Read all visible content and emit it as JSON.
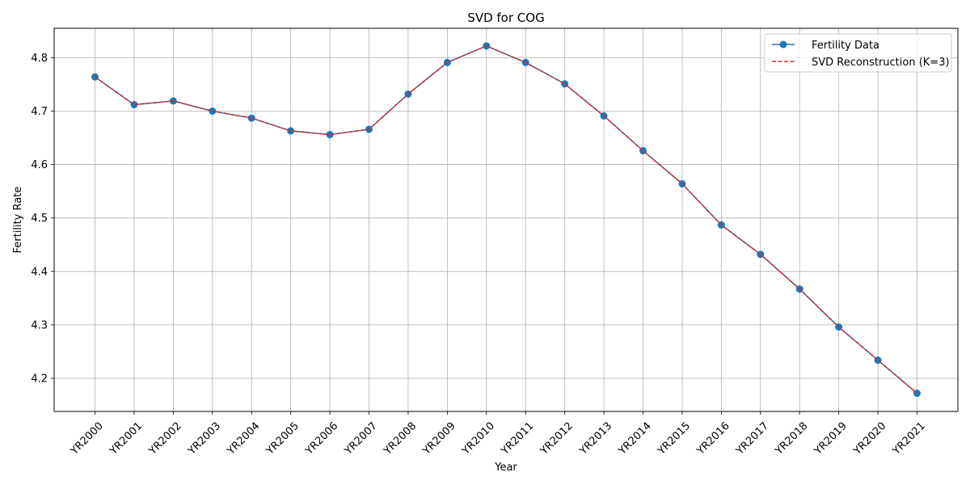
{
  "chart_data": {
    "type": "line",
    "title": "SVD for COG",
    "xlabel": "Year",
    "ylabel": "Fertility Rate",
    "categories": [
      "YR2000",
      "YR2001",
      "YR2002",
      "YR2003",
      "YR2004",
      "YR2005",
      "YR2006",
      "YR2007",
      "YR2008",
      "YR2009",
      "YR2010",
      "YR2011",
      "YR2012",
      "YR2013",
      "YR2014",
      "YR2015",
      "YR2016",
      "YR2017",
      "YR2018",
      "YR2019",
      "YR2020",
      "YR2021"
    ],
    "ylim": [
      4.138,
      4.855
    ],
    "yticks": [
      4.2,
      4.3,
      4.4,
      4.5,
      4.6,
      4.7,
      4.8
    ],
    "grid": true,
    "legend_position": "top-right",
    "series": [
      {
        "name": "Fertility Data",
        "style": "solid-with-markers",
        "color": "#1f77b4",
        "values": [
          4.764,
          4.712,
          4.719,
          4.7,
          4.687,
          4.663,
          4.656,
          4.666,
          4.732,
          4.791,
          4.822,
          4.791,
          4.751,
          4.691,
          4.626,
          4.564,
          4.487,
          4.432,
          4.367,
          4.296,
          4.234,
          4.172
        ]
      },
      {
        "name": "SVD Reconstruction (K=3)",
        "style": "dashed",
        "color": "#d62728",
        "values": [
          4.764,
          4.712,
          4.719,
          4.7,
          4.687,
          4.663,
          4.656,
          4.666,
          4.732,
          4.791,
          4.822,
          4.791,
          4.751,
          4.691,
          4.626,
          4.564,
          4.487,
          4.432,
          4.367,
          4.296,
          4.234,
          4.172
        ]
      }
    ]
  }
}
